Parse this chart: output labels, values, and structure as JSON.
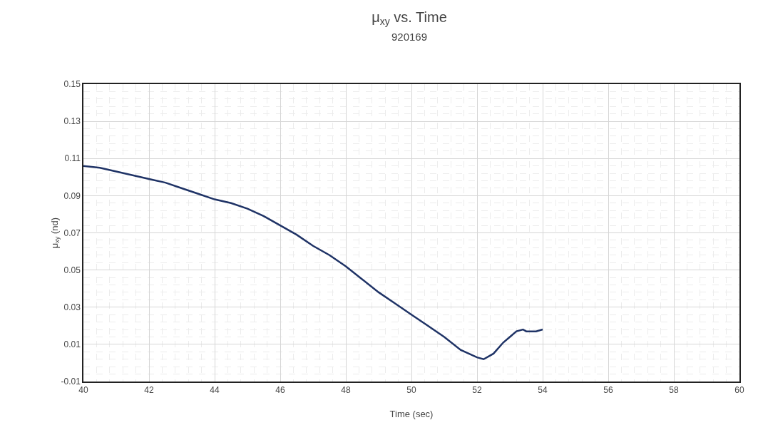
{
  "chart_data": {
    "type": "line",
    "title": "μ$_{xy}$ vs. Time",
    "subtitle": "920169",
    "xlabel": "Time (sec)",
    "ylabel": "μ$_{xy}$ (nd)",
    "x": [
      40,
      40.5,
      41,
      41.5,
      42,
      42.5,
      43,
      43.5,
      44,
      44.5,
      45,
      45.5,
      46,
      46.5,
      47,
      47.5,
      48,
      48.5,
      49,
      49.5,
      50,
      50.5,
      51,
      51.5,
      52,
      52.2,
      52.5,
      52.8,
      53,
      53.2,
      53.4,
      53.5,
      53.8,
      54
    ],
    "series": [
      {
        "color": "#1f3366",
        "values": [
          0.106,
          0.105,
          0.103,
          0.101,
          0.099,
          0.097,
          0.094,
          0.091,
          0.088,
          0.086,
          0.083,
          0.079,
          0.074,
          0.069,
          0.063,
          0.058,
          0.052,
          0.045,
          0.038,
          0.032,
          0.026,
          0.02,
          0.014,
          0.007,
          0.003,
          0.002,
          0.005,
          0.011,
          0.014,
          0.017,
          0.018,
          0.017,
          0.017,
          0.018
        ]
      }
    ],
    "xlim": [
      40,
      60
    ],
    "xticks": [
      40,
      42,
      44,
      46,
      48,
      50,
      52,
      54,
      56,
      58,
      60
    ],
    "ylim": [
      -0.01,
      0.15
    ],
    "yticks": [
      {
        "value": -0.01,
        "label": "-0.01"
      },
      0.01,
      0.03,
      0.05,
      0.07,
      0.09,
      0.11,
      0.13,
      0.15
    ],
    "grid": true,
    "legend": false,
    "marker": "none",
    "line_style": "solid"
  }
}
